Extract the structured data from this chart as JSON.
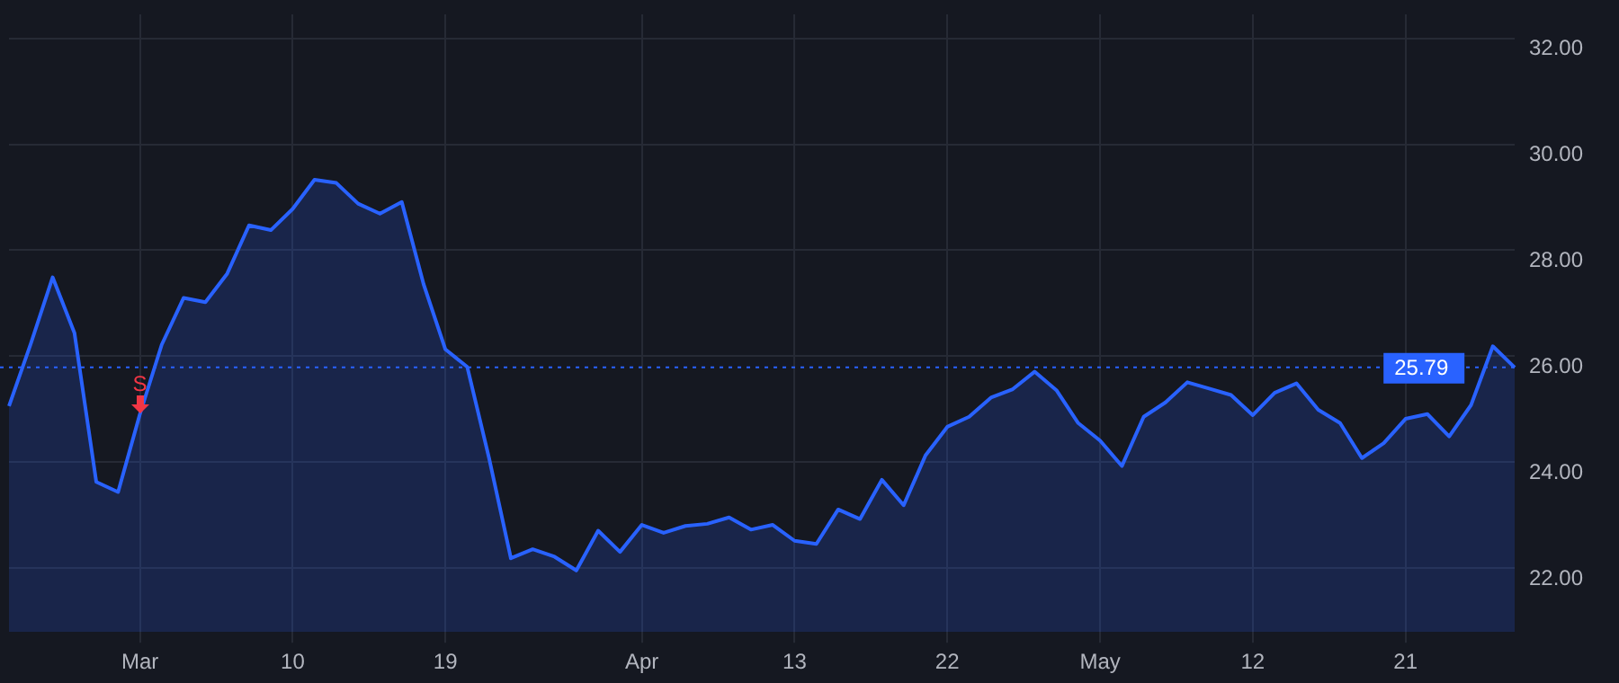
{
  "chart_data": {
    "type": "area",
    "categories": [
      null,
      null,
      null,
      null,
      null,
      null,
      "Mar",
      null,
      null,
      null,
      null,
      null,
      null,
      "10",
      null,
      null,
      null,
      null,
      null,
      null,
      "19",
      null,
      null,
      null,
      null,
      null,
      null,
      null,
      null,
      "Apr",
      null,
      null,
      null,
      null,
      null,
      null,
      "13",
      null,
      null,
      null,
      null,
      null,
      null,
      "22",
      null,
      null,
      null,
      null,
      null,
      null,
      "May",
      null,
      null,
      null,
      null,
      null,
      null,
      "12",
      null,
      null,
      null,
      null,
      null,
      null,
      "21",
      null,
      null,
      null,
      null,
      null
    ],
    "series": [
      {
        "color": "#2962ff",
        "values": [
          25.06,
          26.24,
          27.49,
          26.44,
          23.63,
          23.44,
          24.91,
          26.22,
          27.1,
          27.02,
          27.56,
          28.47,
          28.38,
          28.78,
          29.33,
          29.27,
          28.88,
          28.69,
          28.91,
          27.36,
          26.13,
          25.8,
          24.08,
          22.19,
          22.36,
          22.22,
          21.96,
          22.71,
          22.31,
          22.82,
          22.67,
          22.8,
          22.84,
          22.96,
          22.73,
          22.82,
          22.52,
          22.46,
          23.11,
          22.93,
          23.67,
          23.19,
          24.13,
          24.67,
          24.86,
          25.22,
          25.38,
          25.71,
          25.36,
          24.74,
          24.41,
          23.93,
          24.86,
          25.13,
          25.51,
          25.39,
          25.27,
          24.89,
          25.31,
          25.49,
          24.99,
          24.74,
          24.08,
          24.36,
          24.82,
          24.91,
          24.49,
          25.08,
          26.19,
          25.79
        ]
      }
    ],
    "ylim": [
      20.8,
      32.45
    ],
    "yticks": [
      {
        "value": 22,
        "label": "22.00"
      },
      {
        "value": 24,
        "label": "24.00"
      },
      {
        "value": 26,
        "label": "26.00"
      },
      {
        "value": 28,
        "label": "28.00"
      },
      {
        "value": 30,
        "label": "30.00"
      },
      {
        "value": 32,
        "label": "32.00"
      }
    ],
    "grid": true,
    "legend": false,
    "marker": "none",
    "line_style": "solid",
    "ref_lines": [
      {
        "axis": "y",
        "value": 25.79,
        "label": "25.79",
        "color": "#2962ff",
        "line_style": "dotted"
      }
    ],
    "annotations": [
      {
        "text": "S",
        "x": "Mar",
        "y": 24.91
      }
    ]
  }
}
